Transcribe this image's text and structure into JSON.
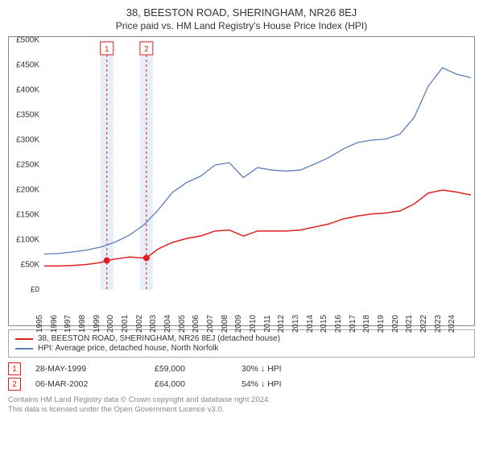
{
  "title_main": "38, BEESTON ROAD, SHERINGHAM, NR26 8EJ",
  "title_sub": "Price paid vs. HM Land Registry's House Price Index (HPI)",
  "chart": {
    "type": "line",
    "background_color": "#ffffff",
    "grid": false,
    "ylim": [
      0,
      500000
    ],
    "ytick_step": 50000,
    "ylabels": [
      "£0",
      "£50K",
      "£100K",
      "£150K",
      "£200K",
      "£250K",
      "£300K",
      "£350K",
      "£400K",
      "£450K",
      "£500K"
    ],
    "xlim": [
      1995,
      2025
    ],
    "xticks": [
      1995,
      1996,
      1997,
      1998,
      1999,
      2000,
      2001,
      2002,
      2003,
      2004,
      2005,
      2006,
      2007,
      2008,
      2009,
      2010,
      2011,
      2012,
      2013,
      2014,
      2015,
      2016,
      2017,
      2018,
      2019,
      2020,
      2021,
      2022,
      2023,
      2024
    ],
    "band_color": "#e8eef7",
    "band_line_color": "#e02020",
    "series": [
      {
        "name": "property",
        "label": "38, BEESTON ROAD, SHERINGHAM, NR26 8EJ (detached house)",
        "color": "#e02020",
        "line_width": 1.5,
        "data": [
          [
            1995,
            48000
          ],
          [
            1996,
            48000
          ],
          [
            1997,
            49000
          ],
          [
            1998,
            51000
          ],
          [
            1999,
            55000
          ],
          [
            1999.4,
            59000
          ],
          [
            2000,
            62000
          ],
          [
            2001,
            66000
          ],
          [
            2002,
            64000
          ],
          [
            2002.18,
            64000
          ],
          [
            2003,
            82000
          ],
          [
            2004,
            95000
          ],
          [
            2005,
            103000
          ],
          [
            2006,
            108000
          ],
          [
            2007,
            118000
          ],
          [
            2008,
            120000
          ],
          [
            2009,
            108000
          ],
          [
            2010,
            118000
          ],
          [
            2011,
            118000
          ],
          [
            2012,
            118000
          ],
          [
            2013,
            120000
          ],
          [
            2014,
            126000
          ],
          [
            2015,
            132000
          ],
          [
            2016,
            142000
          ],
          [
            2017,
            148000
          ],
          [
            2018,
            152000
          ],
          [
            2019,
            154000
          ],
          [
            2020,
            158000
          ],
          [
            2021,
            172000
          ],
          [
            2022,
            194000
          ],
          [
            2023,
            200000
          ],
          [
            2024,
            196000
          ],
          [
            2025,
            190000
          ]
        ]
      },
      {
        "name": "hpi",
        "label": "HPI: Average price, detached house, North Norfolk",
        "color": "#5b7ebb",
        "line_width": 1.3,
        "data": [
          [
            1995,
            72000
          ],
          [
            1996,
            73000
          ],
          [
            1997,
            76000
          ],
          [
            1998,
            80000
          ],
          [
            1999,
            86000
          ],
          [
            2000,
            96000
          ],
          [
            2001,
            110000
          ],
          [
            2002,
            130000
          ],
          [
            2003,
            160000
          ],
          [
            2004,
            195000
          ],
          [
            2005,
            215000
          ],
          [
            2006,
            228000
          ],
          [
            2007,
            250000
          ],
          [
            2008,
            255000
          ],
          [
            2009,
            225000
          ],
          [
            2010,
            245000
          ],
          [
            2011,
            240000
          ],
          [
            2012,
            238000
          ],
          [
            2013,
            240000
          ],
          [
            2014,
            252000
          ],
          [
            2015,
            265000
          ],
          [
            2016,
            282000
          ],
          [
            2017,
            295000
          ],
          [
            2018,
            300000
          ],
          [
            2019,
            302000
          ],
          [
            2020,
            312000
          ],
          [
            2021,
            345000
          ],
          [
            2022,
            408000
          ],
          [
            2023,
            445000
          ],
          [
            2024,
            432000
          ],
          [
            2025,
            425000
          ]
        ]
      }
    ],
    "sale_points": [
      {
        "n": 1,
        "x": 1999.4,
        "y": 59000,
        "color": "#e02020"
      },
      {
        "n": 2,
        "x": 2002.18,
        "y": 64000,
        "color": "#e02020"
      }
    ]
  },
  "sales": [
    {
      "n": "1",
      "date": "28-MAY-1999",
      "price": "£59,000",
      "delta": "30% ↓ HPI"
    },
    {
      "n": "2",
      "date": "06-MAR-2002",
      "price": "£64,000",
      "delta": "54% ↓ HPI"
    }
  ],
  "footer_line1": "Contains HM Land Registry data © Crown copyright and database right 2024.",
  "footer_line2": "This data is licensed under the Open Government Licence v3.0."
}
